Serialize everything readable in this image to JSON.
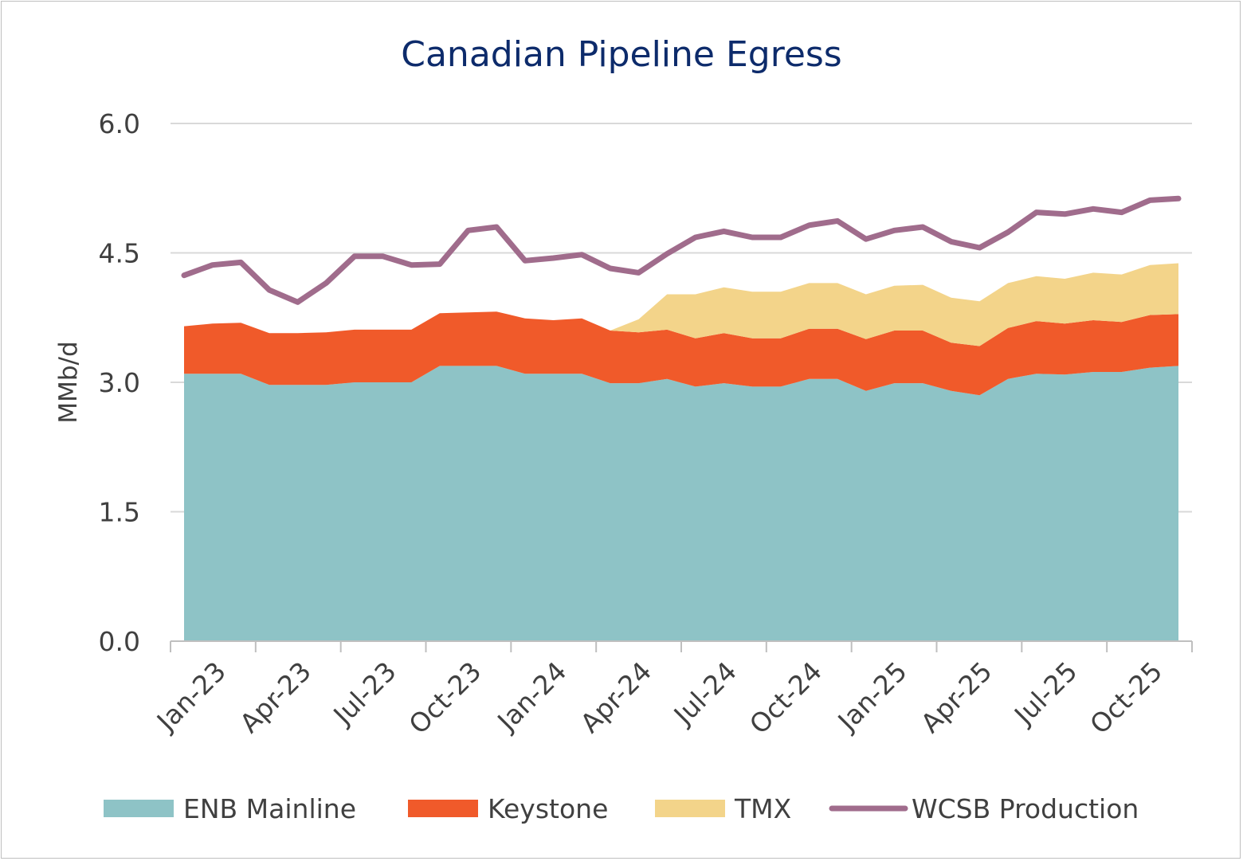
{
  "chart_data": {
    "type": "area",
    "title": "Canadian Pipeline Egress",
    "ylabel": "MMb/d",
    "xlabel": "",
    "ylim": [
      0,
      6
    ],
    "yticks": [
      "0.0",
      "1.5",
      "3.0",
      "4.5",
      "6.0"
    ],
    "ytick_values": [
      0,
      1.5,
      3.0,
      4.5,
      6.0
    ],
    "x": [
      "Jan-23",
      "Feb-23",
      "Mar-23",
      "Apr-23",
      "May-23",
      "Jun-23",
      "Jul-23",
      "Aug-23",
      "Sep-23",
      "Oct-23",
      "Nov-23",
      "Dec-23",
      "Jan-24",
      "Feb-24",
      "Mar-24",
      "Apr-24",
      "May-24",
      "Jun-24",
      "Jul-24",
      "Aug-24",
      "Sep-24",
      "Oct-24",
      "Nov-24",
      "Dec-24",
      "Jan-25",
      "Feb-25",
      "Mar-25",
      "Apr-25",
      "May-25",
      "Jun-25",
      "Jul-25",
      "Aug-25",
      "Sep-25",
      "Oct-25",
      "Nov-25",
      "Dec-25"
    ],
    "xtick_labels": [
      "Jan-23",
      "Apr-23",
      "Jul-23",
      "Oct-23",
      "Jan-24",
      "Apr-24",
      "Jul-24",
      "Oct-24",
      "Jan-25",
      "Apr-25",
      "Jul-25",
      "Oct-25"
    ],
    "legend_position": "bottom",
    "grid": true,
    "stacked_series": [
      {
        "name": "ENB Mainline",
        "color": "#8ec3c6",
        "values": [
          3.1,
          3.1,
          3.1,
          2.97,
          2.97,
          2.97,
          3.0,
          3.0,
          3.0,
          3.19,
          3.19,
          3.19,
          3.1,
          3.1,
          3.1,
          2.99,
          2.99,
          3.04,
          2.95,
          2.99,
          2.95,
          2.95,
          3.04,
          3.04,
          2.9,
          2.99,
          2.99,
          2.9,
          2.85,
          3.04,
          3.1,
          3.09,
          3.12,
          3.12,
          3.17,
          3.19
        ]
      },
      {
        "name": "Keystone",
        "color": "#f05a2a",
        "values": [
          0.55,
          0.58,
          0.59,
          0.6,
          0.6,
          0.61,
          0.61,
          0.61,
          0.61,
          0.61,
          0.62,
          0.63,
          0.64,
          0.62,
          0.64,
          0.61,
          0.59,
          0.57,
          0.56,
          0.58,
          0.56,
          0.56,
          0.58,
          0.58,
          0.6,
          0.61,
          0.61,
          0.56,
          0.57,
          0.59,
          0.61,
          0.59,
          0.6,
          0.58,
          0.61,
          0.6
        ]
      },
      {
        "name": "TMX",
        "color": "#f3d48a",
        "values": [
          0,
          0,
          0,
          0,
          0,
          0,
          0,
          0,
          0,
          0,
          0,
          0,
          0,
          0,
          0,
          0,
          0.15,
          0.41,
          0.51,
          0.53,
          0.54,
          0.54,
          0.53,
          0.53,
          0.52,
          0.52,
          0.53,
          0.52,
          0.52,
          0.52,
          0.52,
          0.52,
          0.55,
          0.55,
          0.58,
          0.59
        ]
      }
    ],
    "line_series": [
      {
        "name": "WCSB Production",
        "color": "#a06c8c",
        "values": [
          4.24,
          4.36,
          4.39,
          4.07,
          3.93,
          4.15,
          4.46,
          4.46,
          4.36,
          4.37,
          4.76,
          4.8,
          4.41,
          4.44,
          4.48,
          4.32,
          4.27,
          4.49,
          4.68,
          4.75,
          4.68,
          4.68,
          4.82,
          4.87,
          4.66,
          4.76,
          4.8,
          4.63,
          4.56,
          4.74,
          4.97,
          4.95,
          5.01,
          4.97,
          5.11,
          5.13
        ]
      }
    ]
  }
}
